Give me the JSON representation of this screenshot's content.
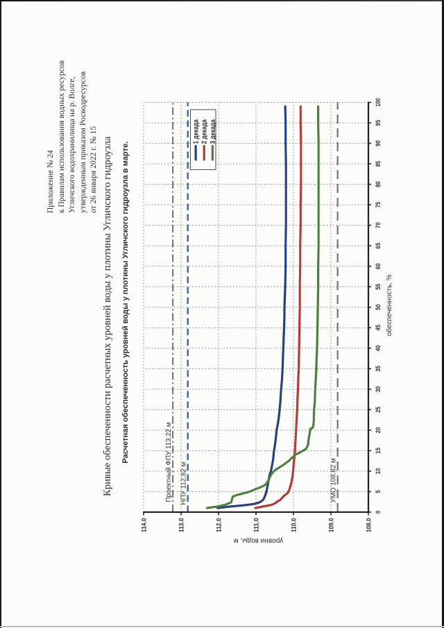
{
  "page": {
    "background": "#fcfcfa"
  },
  "header": {
    "lines": [
      "Приложение № 24",
      "к Правилам использования водных ресурсов",
      "Угличского водохранилища на р. Волге,",
      "утвержденным приказом Росводресурсов",
      "от 26 января 2022 г. № 15"
    ]
  },
  "document": {
    "title": "Кривые обеспеченности расчетных уровней воды у плотины Угличского гидроузла"
  },
  "chart_data": {
    "type": "line",
    "title": "Расчетная обеспеченность уровней воды у плотины Угличского гидроузла в марте.",
    "xlabel": "обеспеченность, %",
    "ylabel": "уровни воды, м",
    "xlim": [
      0,
      100
    ],
    "ylim": [
      108,
      114
    ],
    "x_ticks": [
      0,
      5,
      10,
      15,
      20,
      25,
      30,
      35,
      40,
      45,
      50,
      55,
      60,
      65,
      70,
      75,
      80,
      85,
      90,
      95,
      100
    ],
    "y_ticks": [
      114,
      113,
      112,
      111,
      110,
      109,
      108
    ],
    "y_tick_labels": [
      "114.0",
      "113.0",
      "112.0",
      "111.0",
      "110.0",
      "109.0",
      "108.0"
    ],
    "grid": true,
    "legend_position": "top-right-inside",
    "series": [
      {
        "name": "1 декада",
        "color": "#27417a",
        "points": [
          [
            1,
            112.02
          ],
          [
            1.3,
            111.75
          ],
          [
            1.7,
            111.3
          ],
          [
            2,
            111.05
          ],
          [
            2.3,
            110.93
          ],
          [
            2.5,
            110.88
          ],
          [
            3,
            110.81
          ],
          [
            3.5,
            110.78
          ],
          [
            4,
            110.76
          ],
          [
            5,
            110.72
          ],
          [
            6,
            110.7
          ],
          [
            7,
            110.68
          ],
          [
            8,
            110.66
          ],
          [
            9,
            110.64
          ],
          [
            10,
            110.6
          ],
          [
            11,
            110.58
          ],
          [
            12,
            110.56
          ],
          [
            13,
            110.54
          ],
          [
            14,
            110.53
          ],
          [
            15,
            110.52
          ],
          [
            16,
            110.5
          ],
          [
            18,
            110.47
          ],
          [
            20,
            110.45
          ],
          [
            22,
            110.41
          ],
          [
            24,
            110.38
          ],
          [
            25,
            110.37
          ],
          [
            27,
            110.35
          ],
          [
            30,
            110.33
          ],
          [
            32,
            110.31
          ],
          [
            35,
            110.29
          ],
          [
            38,
            110.28
          ],
          [
            40,
            110.27
          ],
          [
            43,
            110.26
          ],
          [
            45,
            110.25
          ],
          [
            48,
            110.24
          ],
          [
            50,
            110.24
          ],
          [
            53,
            110.23
          ],
          [
            55,
            110.22
          ],
          [
            60,
            110.21
          ],
          [
            65,
            110.21
          ],
          [
            70,
            110.2
          ],
          [
            75,
            110.2
          ],
          [
            80,
            110.2
          ],
          [
            85,
            110.2
          ],
          [
            90,
            110.21
          ],
          [
            95,
            110.21
          ],
          [
            99,
            110.22
          ]
        ]
      },
      {
        "name": "2 декада",
        "color": "#b03d39",
        "points": [
          [
            1,
            111.02
          ],
          [
            1.4,
            110.8
          ],
          [
            1.7,
            110.62
          ],
          [
            2,
            110.52
          ],
          [
            2.4,
            110.45
          ],
          [
            2.7,
            110.42
          ],
          [
            2.9,
            110.36
          ],
          [
            3.2,
            110.33
          ],
          [
            3.6,
            110.29
          ],
          [
            4,
            110.25
          ],
          [
            4.4,
            110.19
          ],
          [
            4.7,
            110.15
          ],
          [
            5.5,
            110.11
          ],
          [
            6.4,
            110.08
          ],
          [
            7,
            110.06
          ],
          [
            8,
            110.04
          ],
          [
            9,
            110.02
          ],
          [
            10,
            110.01
          ],
          [
            12,
            109.99
          ],
          [
            14,
            109.97
          ],
          [
            15,
            109.96
          ],
          [
            17,
            109.95
          ],
          [
            18,
            109.94
          ],
          [
            20,
            109.93
          ],
          [
            22,
            109.92
          ],
          [
            25,
            109.9
          ],
          [
            28,
            109.89
          ],
          [
            30,
            109.88
          ],
          [
            33,
            109.87
          ],
          [
            35,
            109.86
          ],
          [
            40,
            109.85
          ],
          [
            45,
            109.84
          ],
          [
            50,
            109.83
          ],
          [
            55,
            109.83
          ],
          [
            60,
            109.82
          ],
          [
            65,
            109.82
          ],
          [
            70,
            109.81
          ],
          [
            75,
            109.81
          ],
          [
            80,
            109.8
          ],
          [
            85,
            109.8
          ],
          [
            90,
            109.8
          ],
          [
            95,
            109.81
          ],
          [
            99,
            109.81
          ]
        ]
      },
      {
        "name": "3 декада",
        "color": "#4d8040",
        "points": [
          [
            1,
            112.31
          ],
          [
            1.4,
            112.0
          ],
          [
            1.8,
            111.82
          ],
          [
            2.1,
            111.74
          ],
          [
            2.3,
            111.68
          ],
          [
            2.5,
            111.66
          ],
          [
            3.8,
            111.62
          ],
          [
            4.2,
            111.5
          ],
          [
            4.6,
            111.32
          ],
          [
            5,
            111.17
          ],
          [
            5.5,
            111.04
          ],
          [
            6,
            110.9
          ],
          [
            6.5,
            110.78
          ],
          [
            7,
            110.72
          ],
          [
            7.7,
            110.67
          ],
          [
            8.5,
            110.63
          ],
          [
            9,
            110.61
          ],
          [
            9.5,
            110.57
          ],
          [
            10,
            110.52
          ],
          [
            10.5,
            110.45
          ],
          [
            11,
            110.36
          ],
          [
            11.5,
            110.27
          ],
          [
            12,
            110.2
          ],
          [
            12.5,
            110.12
          ],
          [
            13,
            110.07
          ],
          [
            13.5,
            110.01
          ],
          [
            14,
            109.95
          ],
          [
            14.5,
            109.84
          ],
          [
            15,
            109.74
          ],
          [
            15.4,
            109.67
          ],
          [
            15.8,
            109.64
          ],
          [
            16.5,
            109.61
          ],
          [
            17.5,
            109.6
          ],
          [
            18.5,
            109.58
          ],
          [
            19.5,
            109.56
          ],
          [
            20.3,
            109.55
          ],
          [
            20.6,
            109.49
          ],
          [
            21,
            109.47
          ],
          [
            22,
            109.46
          ],
          [
            23,
            109.455
          ],
          [
            25,
            109.45
          ],
          [
            27,
            109.43
          ],
          [
            30,
            109.42
          ],
          [
            33,
            109.4
          ],
          [
            35,
            109.39
          ],
          [
            38,
            109.38
          ],
          [
            40,
            109.37
          ],
          [
            45,
            109.36
          ],
          [
            50,
            109.35
          ],
          [
            55,
            109.34
          ],
          [
            60,
            109.34
          ],
          [
            65,
            109.33
          ],
          [
            70,
            109.33
          ],
          [
            75,
            109.33
          ],
          [
            80,
            109.33
          ],
          [
            85,
            109.33
          ],
          [
            90,
            109.33
          ],
          [
            95,
            109.34
          ],
          [
            99,
            109.34
          ]
        ]
      }
    ],
    "reference_lines": [
      {
        "label": "Проектный ФПУ 113.22 м",
        "value": 113.22,
        "color": "#6f6f6f",
        "dash": "dash-dot"
      },
      {
        "label": "НПУ 112.82 м",
        "value": 112.82,
        "color": "#3a67c0",
        "dash": "dash"
      },
      {
        "label": "УМО 108.82 м",
        "value": 108.82,
        "color": "#6f6f6f",
        "dash": "long-dash"
      }
    ]
  }
}
